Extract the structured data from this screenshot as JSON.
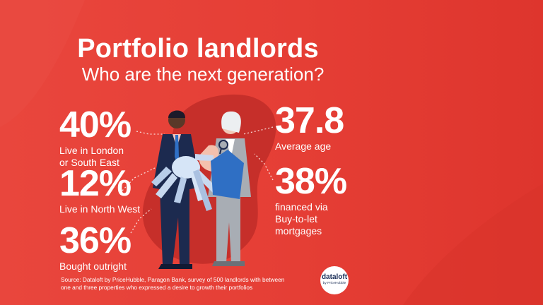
{
  "heading": {
    "title": "Portfolio landlords",
    "subtitle": "Who are the next generation?"
  },
  "stats": {
    "london": {
      "value": "40%",
      "label_line1": "Live in London",
      "label_line2": "or South East"
    },
    "north_west": {
      "value": "12%",
      "label_line1": "Live in North West"
    },
    "outright": {
      "value": "36%",
      "label_line1": "Bought outright"
    },
    "age": {
      "value": "37.8",
      "label_line1": "Average age"
    },
    "financed": {
      "value": "38%",
      "label_line1": "financed via",
      "label_line2": "Buy-to-let",
      "label_line3": "mortgages"
    }
  },
  "source": {
    "line1": "Source: Dataloft by PriceHubble, Paragon Bank, survey of 500 landlords with between",
    "line2": "one and three properties who expressed a desire to growth their portfolios"
  },
  "logo": {
    "name": "dataloft",
    "sub": "by PriceHubble"
  },
  "colors": {
    "background": "#e53e35",
    "blob": "#c62f2a",
    "text": "#ffffff",
    "house": "#2f6fc4",
    "navy": "#1c2a4f"
  }
}
